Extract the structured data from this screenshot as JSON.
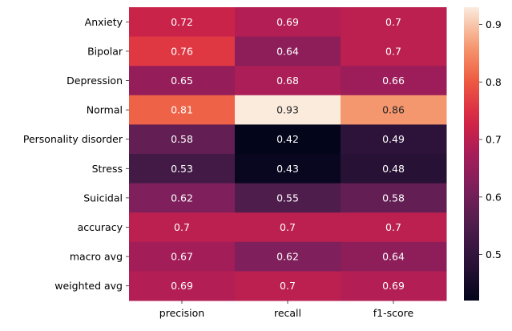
{
  "chart_data": {
    "type": "heatmap",
    "title": "",
    "xlabel": "",
    "ylabel": "",
    "columns": [
      "precision",
      "recall",
      "f1-score"
    ],
    "rows": [
      "Anxiety",
      "Bipolar",
      "Depression",
      "Normal",
      "Personality disorder",
      "Stress",
      "Suicidal",
      "accuracy",
      "macro avg",
      "weighted avg"
    ],
    "values": [
      [
        0.72,
        0.69,
        0.7
      ],
      [
        0.76,
        0.64,
        0.7
      ],
      [
        0.65,
        0.68,
        0.66
      ],
      [
        0.81,
        0.93,
        0.86
      ],
      [
        0.58,
        0.42,
        0.49
      ],
      [
        0.53,
        0.43,
        0.48
      ],
      [
        0.62,
        0.55,
        0.58
      ],
      [
        0.7,
        0.7,
        0.7
      ],
      [
        0.67,
        0.62,
        0.64
      ],
      [
        0.69,
        0.7,
        0.69
      ]
    ],
    "value_labels": [
      [
        "0.72",
        "0.69",
        "0.7"
      ],
      [
        "0.76",
        "0.64",
        "0.7"
      ],
      [
        "0.65",
        "0.68",
        "0.66"
      ],
      [
        "0.81",
        "0.93",
        "0.86"
      ],
      [
        "0.58",
        "0.42",
        "0.49"
      ],
      [
        "0.53",
        "0.43",
        "0.48"
      ],
      [
        "0.62",
        "0.55",
        "0.58"
      ],
      [
        "0.7",
        "0.7",
        "0.7"
      ],
      [
        "0.67",
        "0.62",
        "0.64"
      ],
      [
        "0.69",
        "0.7",
        "0.69"
      ]
    ],
    "colorscale": "rocket",
    "color_range": [
      0.42,
      0.93
    ],
    "colorbar_ticks": [
      0.5,
      0.6,
      0.7,
      0.8,
      0.9
    ],
    "colorbar_tick_labels": [
      "0.5",
      "0.6",
      "0.7",
      "0.8",
      "0.9"
    ],
    "grid": false,
    "legend": "colorbar-right"
  }
}
